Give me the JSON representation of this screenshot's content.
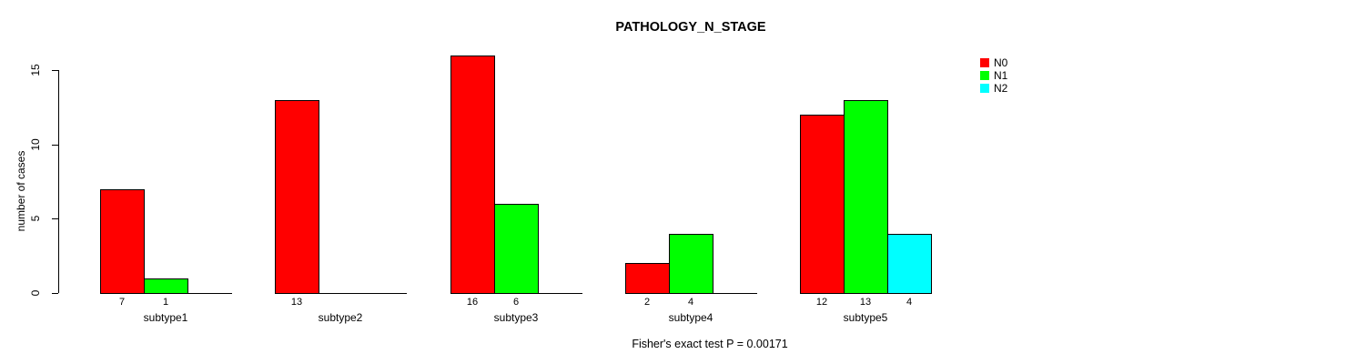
{
  "title": "PATHOLOGY_N_STAGE",
  "footer": "Fisher's exact test P = 0.00171",
  "y_axis": {
    "label": "number of cases",
    "ticks": [
      0,
      5,
      10,
      15
    ]
  },
  "legend": {
    "position": "top-right",
    "entries": [
      {
        "label": "N0",
        "color": "#ff0000"
      },
      {
        "label": "N1",
        "color": "#00ff00"
      },
      {
        "label": "N2",
        "color": "#00ffff"
      }
    ]
  },
  "chart_data": {
    "type": "bar",
    "title": "PATHOLOGY_N_STAGE",
    "xlabel": "",
    "ylabel": "number of cases",
    "ylim": [
      0,
      16
    ],
    "grid": false,
    "legend_position": "top-right",
    "categories": [
      "subtype1",
      "subtype2",
      "subtype3",
      "subtype4",
      "subtype5"
    ],
    "series": [
      {
        "name": "N0",
        "color": "#ff0000",
        "values": [
          7,
          13,
          16,
          2,
          12
        ]
      },
      {
        "name": "N1",
        "color": "#00ff00",
        "values": [
          1,
          0,
          6,
          4,
          13
        ]
      },
      {
        "name": "N2",
        "color": "#00ffff",
        "values": [
          0,
          0,
          0,
          0,
          4
        ]
      }
    ],
    "bar_value_labels_shown": true,
    "annotation": "Fisher's exact test P = 0.00171"
  }
}
